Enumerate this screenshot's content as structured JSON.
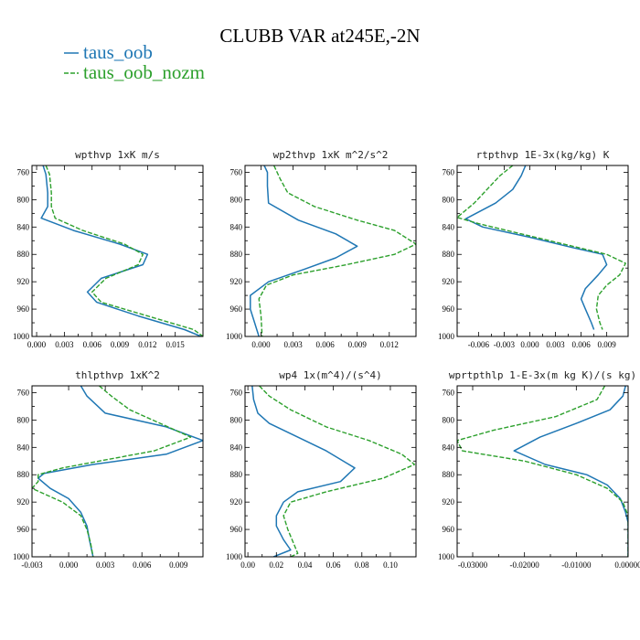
{
  "title": "CLUBB VAR at245E,-2N",
  "colors": {
    "taus_oob": "#1f77b4",
    "taus_oob_nozm": "#2ca02c"
  },
  "legend": [
    {
      "label": "taus_oob",
      "color": "#1f77b4",
      "style": "solid"
    },
    {
      "label": "taus_oob_nozm",
      "color": "#2ca02c",
      "style": "dashed"
    }
  ],
  "chart_data": [
    {
      "type": "line",
      "title": "wpthvp   1xK m/s",
      "xlim": [
        -0.0005,
        0.018
      ],
      "ylim": [
        1000,
        750
      ],
      "xticks": [
        0.0,
        0.003,
        0.006,
        0.009,
        0.012,
        0.015
      ],
      "xtick_labels": [
        "0.000",
        "0.003",
        "0.006",
        "0.009",
        "0.012",
        "0.015"
      ],
      "yticks": [
        760,
        800,
        840,
        880,
        920,
        960,
        1000
      ],
      "grid": false,
      "series": [
        {
          "name": "taus_oob",
          "points": [
            [
              0.0007,
              750
            ],
            [
              0.001,
              763
            ],
            [
              0.0012,
              790
            ],
            [
              0.0012,
              810
            ],
            [
              0.0005,
              827
            ],
            [
              0.004,
              845
            ],
            [
              0.009,
              865
            ],
            [
              0.012,
              880
            ],
            [
              0.0115,
              895
            ],
            [
              0.007,
              915
            ],
            [
              0.0055,
              935
            ],
            [
              0.0065,
              950
            ],
            [
              0.011,
              970
            ],
            [
              0.016,
              990
            ],
            [
              0.0178,
              1000
            ]
          ]
        },
        {
          "name": "taus_oob_nozm",
          "points": [
            [
              0.001,
              750
            ],
            [
              0.0014,
              763
            ],
            [
              0.0016,
              790
            ],
            [
              0.0016,
              810
            ],
            [
              0.002,
              827
            ],
            [
              0.005,
              845
            ],
            [
              0.0095,
              865
            ],
            [
              0.0115,
              880
            ],
            [
              0.011,
              895
            ],
            [
              0.0075,
              915
            ],
            [
              0.006,
              935
            ],
            [
              0.007,
              950
            ],
            [
              0.012,
              970
            ],
            [
              0.017,
              990
            ],
            [
              0.018,
              1000
            ]
          ]
        }
      ]
    },
    {
      "type": "line",
      "title": "wp2thvp   1xK m^2/s^2",
      "xlim": [
        -0.0015,
        0.0145
      ],
      "ylim": [
        1000,
        750
      ],
      "xticks": [
        0.0,
        0.003,
        0.006,
        0.009,
        0.012
      ],
      "xtick_labels": [
        "0.000",
        "0.003",
        "0.006",
        "0.009",
        "0.012"
      ],
      "yticks": [
        760,
        800,
        840,
        880,
        920,
        960,
        1000
      ],
      "grid": false,
      "series": [
        {
          "name": "taus_oob",
          "points": [
            [
              0.0003,
              750
            ],
            [
              0.0006,
              760
            ],
            [
              0.0006,
              780
            ],
            [
              0.0007,
              805
            ],
            [
              0.0035,
              830
            ],
            [
              0.007,
              850
            ],
            [
              0.009,
              868
            ],
            [
              0.007,
              885
            ],
            [
              0.004,
              902
            ],
            [
              0.0007,
              920
            ],
            [
              -0.001,
              940
            ],
            [
              -0.001,
              960
            ],
            [
              -0.0006,
              980
            ],
            [
              -0.0002,
              1000
            ]
          ]
        },
        {
          "name": "taus_oob_nozm",
          "points": [
            [
              0.0012,
              750
            ],
            [
              0.0018,
              770
            ],
            [
              0.0025,
              790
            ],
            [
              0.005,
              810
            ],
            [
              0.009,
              830
            ],
            [
              0.0125,
              845
            ],
            [
              0.0145,
              865
            ],
            [
              0.0125,
              880
            ],
            [
              0.008,
              895
            ],
            [
              0.003,
              910
            ],
            [
              0.0005,
              925
            ],
            [
              -0.0002,
              945
            ],
            [
              0.0,
              970
            ],
            [
              0.0001,
              1000
            ]
          ]
        }
      ]
    },
    {
      "type": "line",
      "title": "rtpthvp   1E-3x(kg/kg) K",
      "xlim": [
        -0.0085,
        0.0115
      ],
      "ylim": [
        1000,
        750
      ],
      "xticks": [
        -0.006,
        -0.003,
        0.0,
        0.003,
        0.006,
        0.009
      ],
      "xtick_labels": [
        "-0.006",
        "-0.003",
        "0.000",
        "0.003",
        "0.006",
        "0.009"
      ],
      "yticks": [
        760,
        800,
        840,
        880,
        920,
        960,
        1000
      ],
      "grid": false,
      "series": [
        {
          "name": "taus_oob",
          "points": [
            [
              -0.0005,
              750
            ],
            [
              -0.001,
              765
            ],
            [
              -0.002,
              785
            ],
            [
              -0.004,
              805
            ],
            [
              -0.0075,
              828
            ],
            [
              -0.0055,
              840
            ],
            [
              0.0,
              855
            ],
            [
              0.005,
              870
            ],
            [
              0.0085,
              880
            ],
            [
              0.009,
              895
            ],
            [
              0.008,
              910
            ],
            [
              0.0065,
              930
            ],
            [
              0.006,
              945
            ],
            [
              0.0065,
              960
            ],
            [
              0.0072,
              980
            ],
            [
              0.0075,
              990
            ]
          ]
        },
        {
          "name": "taus_oob_nozm",
          "points": [
            [
              -0.002,
              750
            ],
            [
              -0.0035,
              765
            ],
            [
              -0.005,
              785
            ],
            [
              -0.0065,
              805
            ],
            [
              -0.0085,
              826
            ],
            [
              -0.006,
              835
            ],
            [
              -0.001,
              850
            ],
            [
              0.005,
              868
            ],
            [
              0.009,
              880
            ],
            [
              0.0112,
              893
            ],
            [
              0.0105,
              910
            ],
            [
              0.009,
              925
            ],
            [
              0.008,
              940
            ],
            [
              0.0078,
              960
            ],
            [
              0.0082,
              980
            ],
            [
              0.0085,
              990
            ]
          ]
        }
      ]
    },
    {
      "type": "line",
      "title": "thlpthvp   1xK^2",
      "xlim": [
        -0.003,
        0.011
      ],
      "ylim": [
        1000,
        750
      ],
      "xticks": [
        -0.003,
        0.0,
        0.003,
        0.006,
        0.009
      ],
      "xtick_labels": [
        "-0.003",
        "0.000",
        "0.003",
        "0.006",
        "0.009"
      ],
      "yticks": [
        760,
        800,
        840,
        880,
        920,
        960,
        1000
      ],
      "grid": false,
      "series": [
        {
          "name": "taus_oob",
          "points": [
            [
              0.001,
              750
            ],
            [
              0.0015,
              765
            ],
            [
              0.003,
              790
            ],
            [
              0.008,
              810
            ],
            [
              0.011,
              830
            ],
            [
              0.008,
              850
            ],
            [
              0.002,
              865
            ],
            [
              -0.002,
              878
            ],
            [
              -0.0025,
              885
            ],
            [
              -0.0015,
              900
            ],
            [
              0.0,
              915
            ],
            [
              0.001,
              935
            ],
            [
              0.0015,
              955
            ],
            [
              0.0017,
              975
            ],
            [
              0.002,
              1000
            ]
          ]
        },
        {
          "name": "taus_oob_nozm",
          "points": [
            [
              0.0025,
              750
            ],
            [
              0.0035,
              765
            ],
            [
              0.005,
              785
            ],
            [
              0.0075,
              805
            ],
            [
              0.01,
              825
            ],
            [
              0.007,
              845
            ],
            [
              0.0025,
              860
            ],
            [
              -0.0005,
              870
            ],
            [
              -0.0025,
              880
            ],
            [
              -0.0025,
              890
            ],
            [
              -0.003,
              900
            ],
            [
              -0.0005,
              920
            ],
            [
              0.001,
              940
            ],
            [
              0.0015,
              960
            ],
            [
              0.0018,
              980
            ],
            [
              0.002,
              1000
            ]
          ]
        }
      ]
    },
    {
      "type": "line",
      "title": "wp4   1x(m^4)/(s^4)",
      "xlim": [
        -0.002,
        0.118
      ],
      "ylim": [
        1000,
        750
      ],
      "xticks": [
        0.0,
        0.02,
        0.04,
        0.06,
        0.08,
        0.1
      ],
      "xtick_labels": [
        "0.00",
        "0.02",
        "0.04",
        "0.06",
        "0.08",
        "0.10"
      ],
      "yticks": [
        760,
        800,
        840,
        880,
        920,
        960,
        1000
      ],
      "grid": false,
      "series": [
        {
          "name": "taus_oob",
          "points": [
            [
              0.003,
              750
            ],
            [
              0.004,
              770
            ],
            [
              0.007,
              790
            ],
            [
              0.015,
              805
            ],
            [
              0.035,
              825
            ],
            [
              0.055,
              845
            ],
            [
              0.075,
              870
            ],
            [
              0.065,
              890
            ],
            [
              0.035,
              905
            ],
            [
              0.025,
              920
            ],
            [
              0.02,
              940
            ],
            [
              0.02,
              955
            ],
            [
              0.025,
              975
            ],
            [
              0.03,
              990
            ],
            [
              0.018,
              1000
            ]
          ]
        },
        {
          "name": "taus_oob_nozm",
          "points": [
            [
              0.008,
              750
            ],
            [
              0.015,
              765
            ],
            [
              0.03,
              785
            ],
            [
              0.055,
              810
            ],
            [
              0.085,
              830
            ],
            [
              0.108,
              850
            ],
            [
              0.117,
              865
            ],
            [
              0.095,
              885
            ],
            [
              0.055,
              905
            ],
            [
              0.03,
              920
            ],
            [
              0.025,
              940
            ],
            [
              0.028,
              960
            ],
            [
              0.032,
              980
            ],
            [
              0.035,
              995
            ],
            [
              0.03,
              1000
            ]
          ]
        }
      ]
    },
    {
      "type": "line",
      "title": "wprtpthlp   1-E-3x(m kg K)/(s kg)",
      "xlim": [
        -0.033,
        0.0
      ],
      "ylim": [
        1000,
        750
      ],
      "xticks": [
        -0.03,
        -0.02,
        -0.01,
        0.0
      ],
      "xtick_labels": [
        "-0.03000",
        "-0.02000",
        "-0.01000",
        "0.00000"
      ],
      "yticks": [
        760,
        800,
        840,
        880,
        920,
        960,
        1000
      ],
      "grid": false,
      "series": [
        {
          "name": "taus_oob",
          "points": [
            [
              -0.0005,
              750
            ],
            [
              -0.001,
              765
            ],
            [
              -0.0035,
              785
            ],
            [
              -0.01,
              805
            ],
            [
              -0.017,
              825
            ],
            [
              -0.022,
              845
            ],
            [
              -0.016,
              865
            ],
            [
              -0.008,
              880
            ],
            [
              -0.004,
              895
            ],
            [
              -0.0015,
              915
            ],
            [
              -0.0005,
              935
            ],
            [
              0.0,
              950
            ],
            [
              0.0,
              1000
            ]
          ]
        },
        {
          "name": "taus_oob_nozm",
          "points": [
            [
              -0.0045,
              750
            ],
            [
              -0.006,
              770
            ],
            [
              -0.014,
              795
            ],
            [
              -0.026,
              815
            ],
            [
              -0.033,
              830
            ],
            [
              -0.032,
              845
            ],
            [
              -0.02,
              860
            ],
            [
              -0.01,
              880
            ],
            [
              -0.004,
              900
            ],
            [
              -0.001,
              920
            ],
            [
              0.0,
              940
            ],
            [
              0.0,
              1000
            ]
          ]
        }
      ]
    }
  ]
}
